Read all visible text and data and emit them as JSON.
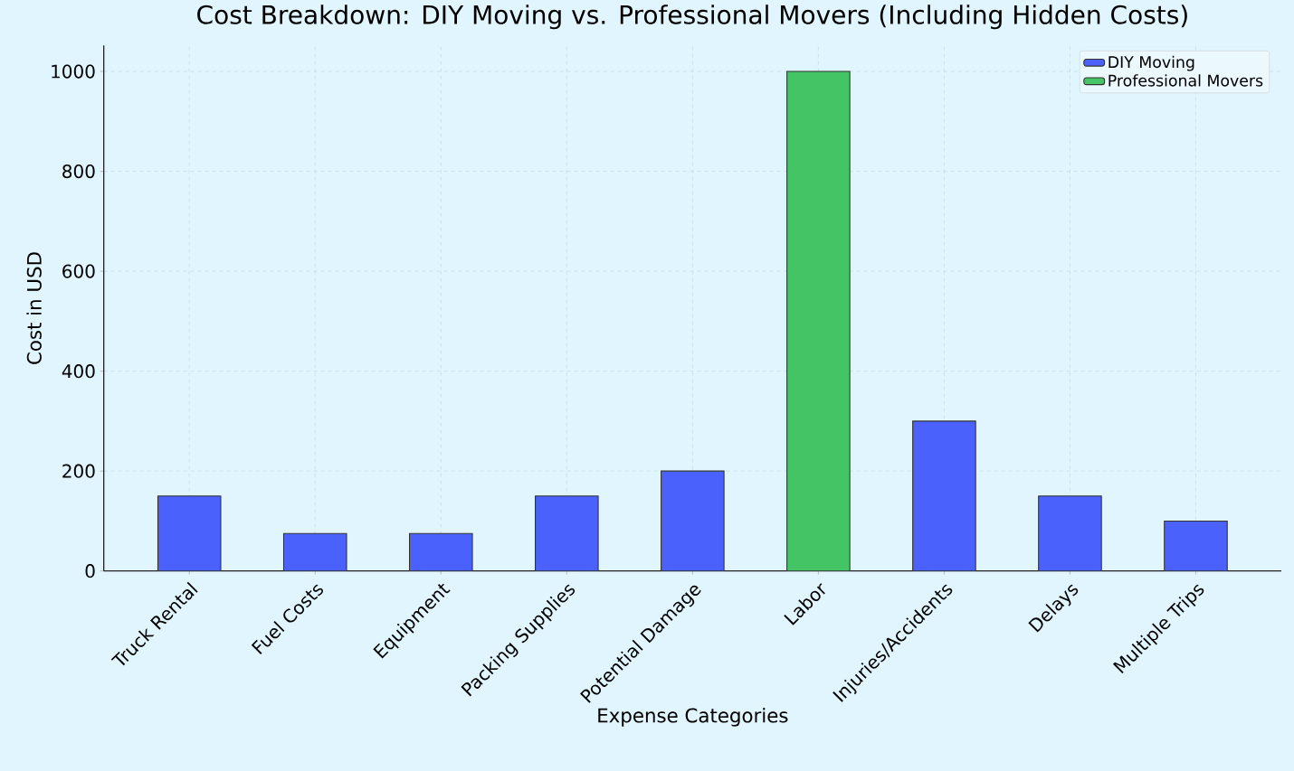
{
  "chart_data": {
    "type": "bar",
    "title": "Cost Breakdown: DIY Moving vs. Professional Movers (Including Hidden Costs)",
    "xlabel": "Expense Categories",
    "ylabel": "Cost in USD",
    "categories": [
      "Truck Rental",
      "Fuel Costs",
      "Equipment",
      "Packing Supplies",
      "Potential Damage",
      "Labor",
      "Injuries/Accidents",
      "Delays",
      "Multiple Trips"
    ],
    "series": [
      {
        "name": "DIY Moving",
        "color": "#4a62fb",
        "values": [
          150,
          75,
          75,
          150,
          200,
          null,
          300,
          150,
          100
        ]
      },
      {
        "name": "Professional Movers",
        "color": "#44c464",
        "values": [
          null,
          null,
          null,
          null,
          null,
          1000,
          null,
          null,
          null
        ]
      }
    ],
    "ylim": [
      0,
      1052
    ],
    "yticks": [
      0,
      200,
      400,
      600,
      800,
      1000
    ],
    "grid": true,
    "legend": "top right"
  }
}
